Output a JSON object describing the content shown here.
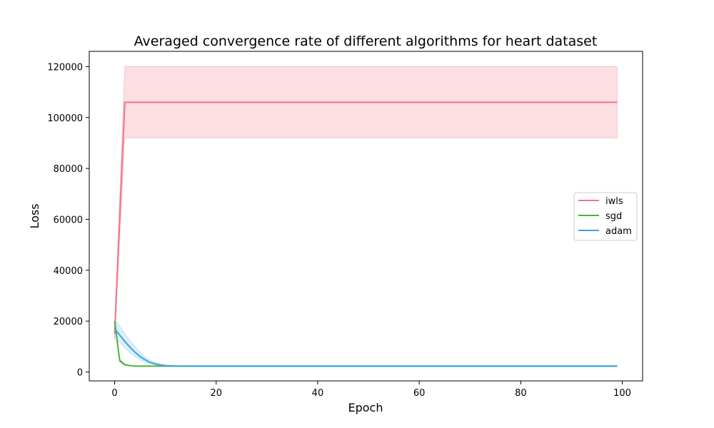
{
  "chart_data": {
    "type": "line",
    "title": "Averaged convergence rate of different algorithms for heart dataset",
    "xlabel": "Epoch",
    "ylabel": "Loss",
    "xlim": [
      -5,
      104
    ],
    "ylim": [
      -3500,
      126000
    ],
    "xticks": [
      0,
      20,
      40,
      60,
      80,
      100
    ],
    "yticks": [
      0,
      20000,
      40000,
      60000,
      80000,
      100000,
      120000
    ],
    "xtick_labels": [
      "0",
      "20",
      "40",
      "60",
      "80",
      "100"
    ],
    "ytick_labels": [
      "0",
      "20000",
      "40000",
      "60000",
      "80000",
      "100000",
      "120000"
    ],
    "grid": false,
    "legend_placement": "center-right",
    "series": [
      {
        "name": "iwls",
        "color": "#f0758a",
        "band_color": "#f5a0b0",
        "x": [
          0,
          2,
          99
        ],
        "y": [
          15000,
          106000,
          106000
        ],
        "band_low": [
          12000,
          92000,
          92000
        ],
        "band_high": [
          18000,
          120000,
          120000
        ]
      },
      {
        "name": "sgd",
        "color": "#4bb537",
        "band_color": "#9fd98f",
        "x": [
          0,
          1,
          2,
          3,
          4,
          6,
          8,
          10,
          20,
          99
        ],
        "y": [
          20000,
          4500,
          2900,
          2500,
          2350,
          2300,
          2300,
          2300,
          2300,
          2300
        ],
        "band_low": [
          18000,
          3800,
          2600,
          2400,
          2300,
          2280,
          2280,
          2280,
          2280,
          2280
        ],
        "band_high": [
          21000,
          5200,
          3200,
          2600,
          2400,
          2320,
          2320,
          2320,
          2320,
          2320
        ]
      },
      {
        "name": "adam",
        "color": "#3ca2e6",
        "band_color": "#9fcff2",
        "x": [
          0,
          1,
          2,
          3,
          4,
          5,
          6,
          7,
          8,
          9,
          10,
          12,
          15,
          20,
          99
        ],
        "y": [
          17000,
          14500,
          12000,
          9800,
          7800,
          6100,
          4800,
          3800,
          3200,
          2800,
          2500,
          2350,
          2300,
          2300,
          2300
        ],
        "band_low": [
          14000,
          11500,
          9500,
          7600,
          6000,
          4700,
          3800,
          3200,
          2800,
          2550,
          2400,
          2300,
          2280,
          2280,
          2280
        ],
        "band_high": [
          20500,
          18000,
          15000,
          12500,
          10000,
          7800,
          6000,
          4600,
          3700,
          3100,
          2700,
          2400,
          2320,
          2320,
          2320
        ]
      }
    ]
  }
}
